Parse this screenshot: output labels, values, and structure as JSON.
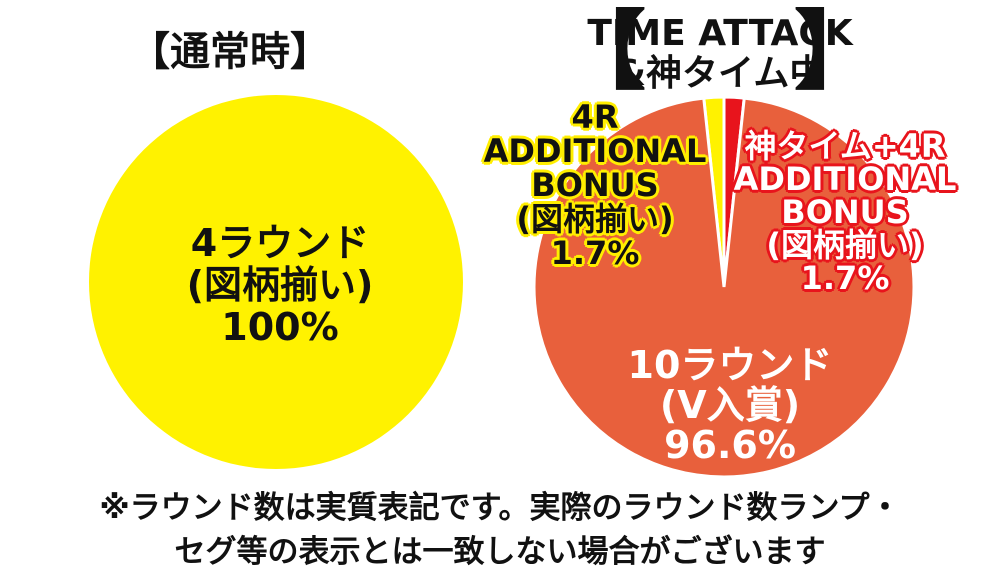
{
  "colors": {
    "yellow": "#fff200",
    "orange": "#e8603c",
    "red": "#e8141c",
    "white": "#ffffff",
    "black": "#111111"
  },
  "titles": {
    "left": "【通常時】",
    "right_bracket_open": "【",
    "right_line1": "TIME ATTACK",
    "right_line2": "&神タイム中",
    "right_bracket_close": "】"
  },
  "chart_data": [
    {
      "type": "pie",
      "title": "【通常時】",
      "slices": [
        {
          "label_lines": [
            "4ラウンド",
            "(図柄揃い)",
            "100%"
          ],
          "value": 100,
          "color": "#fff200"
        }
      ]
    },
    {
      "type": "pie",
      "title": "【TIME ATTACK &神タイム中】",
      "slices": [
        {
          "label_lines": [
            "4R",
            "ADDITIONAL",
            "BONUS",
            "(図柄揃い)",
            "1.7%"
          ],
          "value": 1.7,
          "color": "#fff200"
        },
        {
          "label_lines": [
            "神タイム+4R",
            "ADDITIONAL",
            "BONUS",
            "(図柄揃い)",
            "1.7%"
          ],
          "value": 1.7,
          "color": "#e8141c"
        },
        {
          "label_lines": [
            "10ラウンド",
            "(V入賞)",
            "96.6%"
          ],
          "value": 96.6,
          "color": "#e8603c"
        }
      ]
    }
  ],
  "footnote": {
    "line1": "※ラウンド数は実質表記です。実際のラウンド数ランプ・",
    "line2": "セグ等の表示とは一致しない場合がございます"
  }
}
